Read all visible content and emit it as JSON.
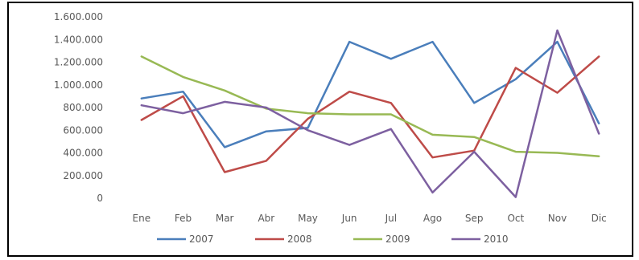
{
  "chart_data": {
    "type": "line",
    "categories": [
      "Ene",
      "Feb",
      "Mar",
      "Abr",
      "May",
      "Jun",
      "Jul",
      "Ago",
      "Sep",
      "Oct",
      "Nov",
      "Dic"
    ],
    "ylim": [
      0,
      1600000
    ],
    "yticks": [
      0,
      200000,
      400000,
      600000,
      800000,
      1000000,
      1200000,
      1400000,
      1600000
    ],
    "ytick_labels": [
      "0",
      "200.000",
      "400.000",
      "600.000",
      "800.000",
      "1.000.000",
      "1.200.000",
      "1.400.000",
      "1.600.000"
    ],
    "grid": false,
    "legend_position": "bottom",
    "series": [
      {
        "name": "2007",
        "color": "#4a7ebb",
        "values": [
          880000,
          940000,
          450000,
          590000,
          620000,
          1380000,
          1230000,
          1380000,
          840000,
          1050000,
          1380000,
          660000
        ]
      },
      {
        "name": "2008",
        "color": "#be4b48",
        "values": [
          690000,
          900000,
          230000,
          330000,
          700000,
          940000,
          840000,
          360000,
          420000,
          1150000,
          930000,
          1250000
        ]
      },
      {
        "name": "2009",
        "color": "#98b954",
        "values": [
          1250000,
          1070000,
          950000,
          790000,
          750000,
          740000,
          740000,
          560000,
          540000,
          410000,
          400000,
          370000
        ]
      },
      {
        "name": "2010",
        "color": "#7d60a0",
        "values": [
          820000,
          750000,
          850000,
          800000,
          600000,
          470000,
          610000,
          50000,
          410000,
          10000,
          1480000,
          570000
        ]
      }
    ]
  }
}
